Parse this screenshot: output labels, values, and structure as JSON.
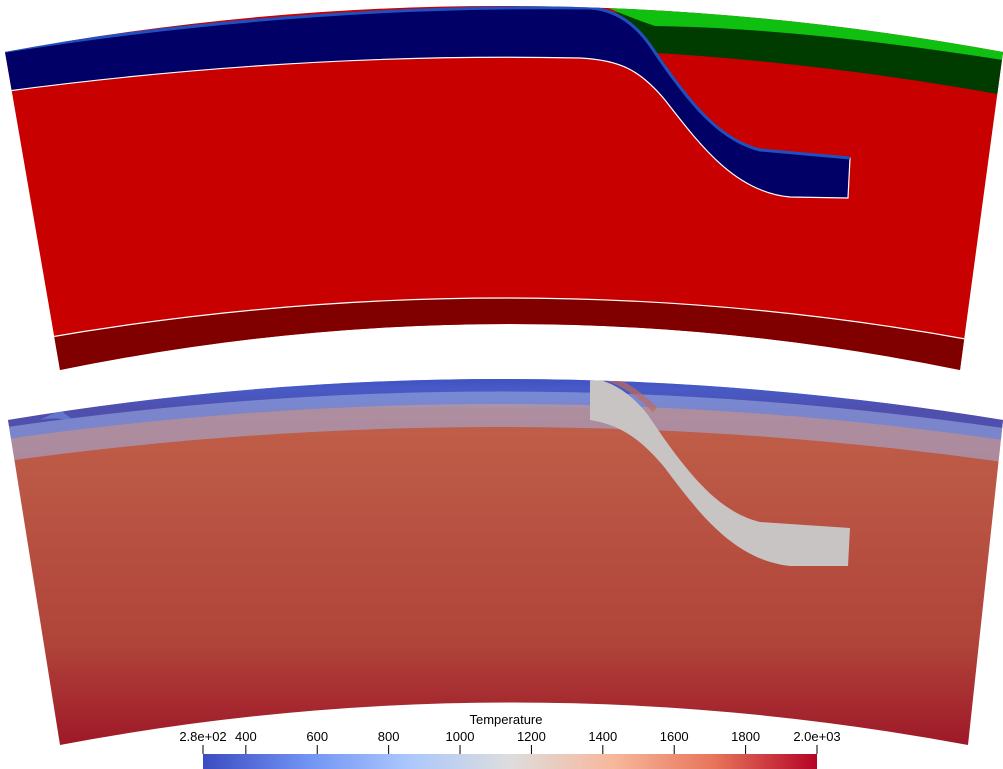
{
  "colorbar": {
    "title": "Temperature",
    "range_min_label": "2.8e+02",
    "range_max_label": "2.0e+03",
    "min": 280,
    "max": 2000,
    "ticks": [
      {
        "value": 400,
        "label": "400"
      },
      {
        "value": 600,
        "label": "600"
      },
      {
        "value": 800,
        "label": "800"
      },
      {
        "value": 1000,
        "label": "1000"
      },
      {
        "value": 1200,
        "label": "1200"
      },
      {
        "value": 1400,
        "label": "1400"
      },
      {
        "value": 1600,
        "label": "1600"
      },
      {
        "value": 1800,
        "label": "1800"
      }
    ],
    "colormap": [
      "#3b4cc0",
      "#7092f3",
      "#aac7fd",
      "#dddddd",
      "#f7b89c",
      "#e7745b",
      "#b40426"
    ]
  },
  "composition_panel": {
    "colors": {
      "mantle": "#c80000",
      "lower_layer": "#800000",
      "subducting_plate": "#000066",
      "plate_rim": "#2050c0",
      "overriding_plate_lower": "#003c00",
      "overriding_plate_upper": "#10c010"
    }
  },
  "temperature_panel": {
    "colors": {
      "surface": "#3b4cc0",
      "interior": "#c0604a",
      "bottom": "#9c1226",
      "slab_core": "#c8c4c4"
    }
  }
}
